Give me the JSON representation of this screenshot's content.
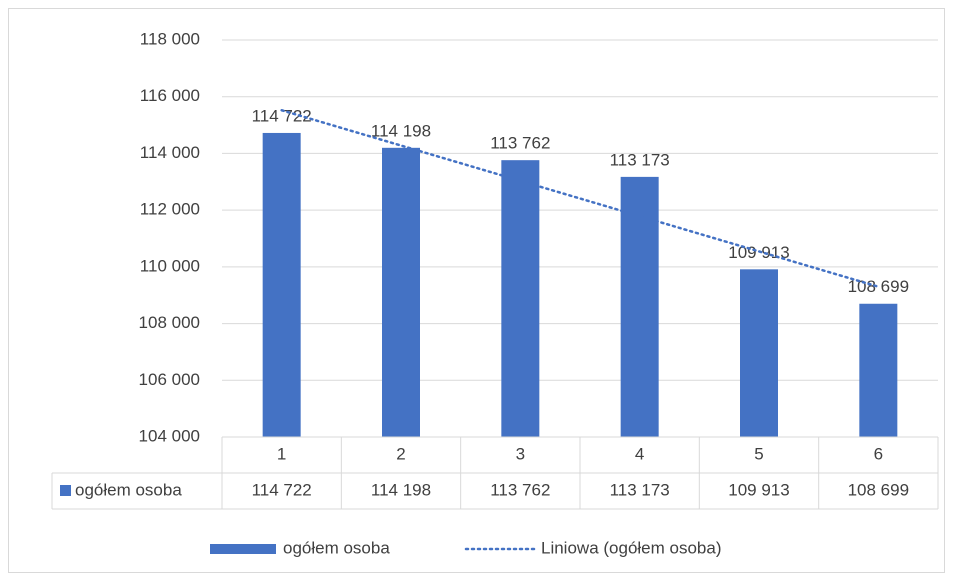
{
  "chart_data": {
    "type": "bar",
    "categories": [
      "1",
      "2",
      "3",
      "4",
      "5",
      "6"
    ],
    "series": [
      {
        "name": "ogółem osoba",
        "color": "#4472c4",
        "values": [
          114722,
          114198,
          113762,
          113173,
          109913,
          108699
        ],
        "value_labels": [
          "114 722",
          "114 198",
          "113 762",
          "113 173",
          "109 913",
          "108 699"
        ]
      }
    ],
    "trendline": {
      "type": "linear",
      "name": "Liniowa (ogółem osoba)",
      "color": "#4472c4"
    },
    "ylim": [
      104000,
      118000
    ],
    "yticks": [
      {
        "value": 104000,
        "label": "104 000"
      },
      {
        "value": 106000,
        "label": "106 000"
      },
      {
        "value": 108000,
        "label": "108 000"
      },
      {
        "value": 110000,
        "label": "110 000"
      },
      {
        "value": 112000,
        "label": "112 000"
      },
      {
        "value": 114000,
        "label": "114 000"
      },
      {
        "value": 116000,
        "label": "116 000"
      },
      {
        "value": 118000,
        "label": "118 000"
      }
    ],
    "grid": true,
    "data_table": true,
    "legend": "bottom"
  }
}
